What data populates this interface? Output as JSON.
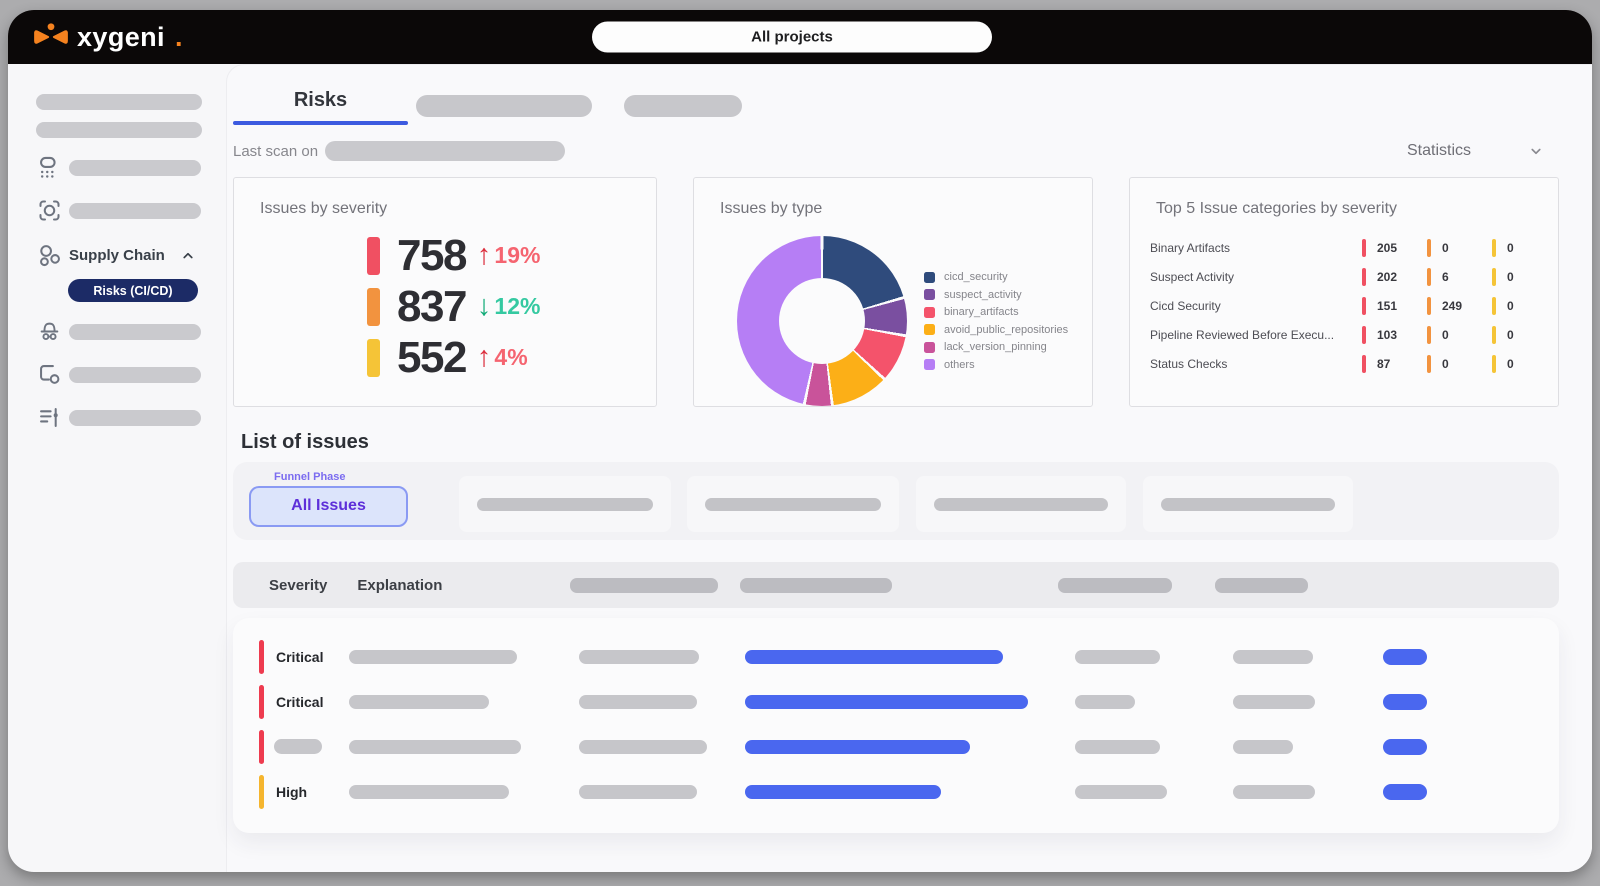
{
  "header": {
    "logo_text": "xygeni",
    "logo_dot": ".",
    "project_selector": "All projects"
  },
  "sidebar": {
    "supply_chain": "Supply Chain",
    "active_item": "Risks (CI/CD)"
  },
  "tabs": {
    "active": "Risks"
  },
  "toolbar": {
    "last_scan_label": "Last scan on",
    "statistics_label": "Statistics"
  },
  "cards": {
    "severity": {
      "title": "Issues by severity",
      "rows": [
        {
          "value": "758",
          "color": "#f05062",
          "trend": "up",
          "pct": "19%",
          "arrow_color": "#dc2f3e",
          "pct_color": "#f56470"
        },
        {
          "value": "837",
          "color": "#f2933f",
          "trend": "down",
          "pct": "12%",
          "arrow_color": "#12ab78",
          "pct_color": "#35c9a1"
        },
        {
          "value": "552",
          "color": "#f5c437",
          "trend": "up",
          "pct": "4%",
          "arrow_color": "#dc2f3e",
          "pct_color": "#f56470"
        }
      ]
    },
    "type": {
      "title": "Issues by type",
      "chart_data": {
        "type": "pie",
        "donut": true,
        "legend_position": "right",
        "segments": [
          {
            "label": "cicd_security",
            "color": "#2f4b7c",
            "degrees": 74,
            "percent": 20.6
          },
          {
            "label": "suspect_activity",
            "color": "#7a4fa0",
            "degrees": 26,
            "percent": 7.2
          },
          {
            "label": "binary_artifacts",
            "color": "#f4536b",
            "degrees": 33,
            "percent": 9.2
          },
          {
            "label": "avoid_public_repositories",
            "color": "#fcaf17",
            "degrees": 40,
            "percent": 11.1
          },
          {
            "label": "lack_version_pinning",
            "color": "#c9539a",
            "degrees": 19,
            "percent": 5.3
          },
          {
            "label": "others",
            "color": "#b67ef5",
            "degrees": 168,
            "percent": 46.6
          }
        ]
      }
    },
    "top5": {
      "title": "Top 5 Issue categories by severity",
      "severity_colors": [
        "#f05062",
        "#f2933f",
        "#f5c437"
      ],
      "rows": [
        {
          "label": "Binary Artifacts",
          "counts": [
            "205",
            "0",
            "0"
          ]
        },
        {
          "label": "Suspect Activity",
          "counts": [
            "202",
            "6",
            "0"
          ]
        },
        {
          "label": "Cicd Security",
          "counts": [
            "151",
            "249",
            "0"
          ]
        },
        {
          "label": "Pipeline Reviewed Before Execu...",
          "counts": [
            "103",
            "0",
            "0"
          ]
        },
        {
          "label": "Status Checks",
          "counts": [
            "87",
            "0",
            "0"
          ]
        }
      ]
    }
  },
  "issues": {
    "heading": "List of issues",
    "funnel_phase_label": "Funnel Phase",
    "all_issues_button": "All Issues",
    "table": {
      "severity_col": "Severity",
      "explanation_col": "Explanation",
      "rows": [
        {
          "severity": "Critical",
          "color": "#ee3b4f",
          "widths": {
            "a": 168,
            "b": 120,
            "link": 258,
            "c": 85,
            "d": 80
          }
        },
        {
          "severity": "Critical",
          "color": "#ee3b4f",
          "widths": {
            "a": 140,
            "b": 118,
            "link": 283,
            "c": 60,
            "d": 82
          }
        },
        {
          "severity": "",
          "color": "#ee3b4f",
          "widths": {
            "a": 172,
            "b": 128,
            "link": 225,
            "c": 85,
            "d": 60
          }
        },
        {
          "severity": "High",
          "color": "#f5b52e",
          "widths": {
            "a": 160,
            "b": 118,
            "link": 196,
            "c": 92,
            "d": 82
          }
        }
      ]
    }
  },
  "colors": {
    "accent_blue": "#4a67ef",
    "tab_underline": "#3d5be0",
    "active_nav_bg": "#1c2b66",
    "header_bg": "#0b0808",
    "logo_orange": "#f5821f"
  }
}
